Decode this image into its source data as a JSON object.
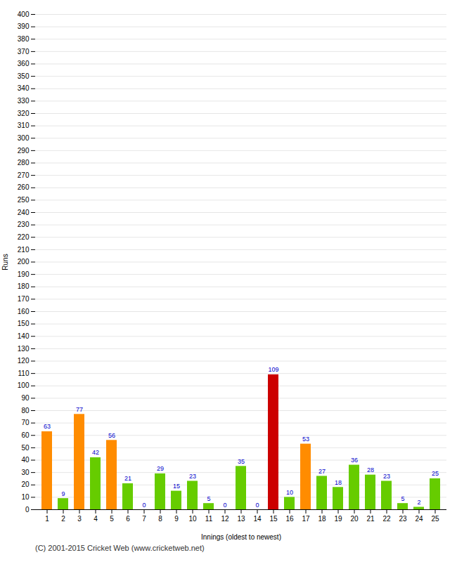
{
  "chart_data": {
    "type": "bar",
    "categories": [
      "1",
      "2",
      "3",
      "4",
      "5",
      "6",
      "7",
      "8",
      "9",
      "10",
      "11",
      "12",
      "13",
      "14",
      "15",
      "16",
      "17",
      "18",
      "19",
      "20",
      "21",
      "22",
      "23",
      "24",
      "25"
    ],
    "values": [
      63,
      9,
      77,
      42,
      56,
      21,
      0,
      29,
      15,
      23,
      5,
      0,
      35,
      0,
      109,
      10,
      53,
      27,
      18,
      36,
      28,
      23,
      5,
      2,
      25
    ],
    "colors": [
      "#ff8c00",
      "#66cc00",
      "#ff8c00",
      "#66cc00",
      "#ff8c00",
      "#66cc00",
      "#66cc00",
      "#66cc00",
      "#66cc00",
      "#66cc00",
      "#66cc00",
      "#66cc00",
      "#66cc00",
      "#66cc00",
      "#cc0000",
      "#66cc00",
      "#ff8c00",
      "#66cc00",
      "#66cc00",
      "#66cc00",
      "#66cc00",
      "#66cc00",
      "#66cc00",
      "#66cc00",
      "#66cc00"
    ],
    "xlabel": "Innings (oldest to newest)",
    "ylabel": "Runs",
    "ylim": [
      0,
      400
    ],
    "yticks": [
      0,
      10,
      20,
      30,
      40,
      50,
      60,
      70,
      80,
      90,
      100,
      110,
      120,
      130,
      140,
      150,
      160,
      170,
      180,
      190,
      200,
      210,
      220,
      230,
      240,
      250,
      260,
      270,
      280,
      290,
      300,
      310,
      320,
      330,
      340,
      350,
      360,
      370,
      380,
      390,
      400
    ],
    "grid": true,
    "data_labels": true,
    "annotations": [
      "(C) 2001-2015 Cricket Web (www.cricketweb.net)"
    ]
  }
}
